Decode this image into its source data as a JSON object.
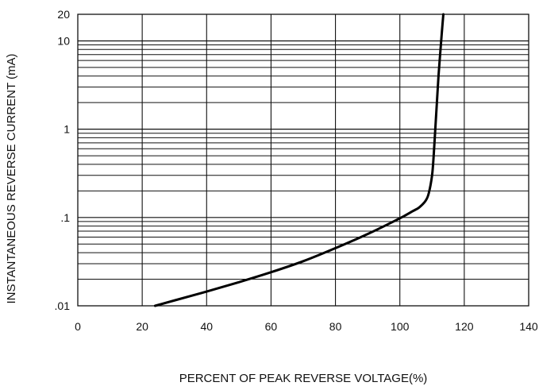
{
  "chart_data": {
    "type": "line",
    "title": "",
    "xlabel": "PERCENT OF PEAK REVERSE VOLTAGE(%)",
    "ylabel": "INSTANTANEOUS REVERSE CURRENT (mA)",
    "xlim": [
      0,
      140
    ],
    "ylim": [
      0.01,
      20
    ],
    "y_scale": "log",
    "grid": true,
    "legend": "none",
    "x_ticks": [
      0,
      20,
      40,
      60,
      80,
      100,
      120,
      140
    ],
    "y_ticks": [
      {
        "value": 0.01,
        "label": ".01"
      },
      {
        "value": 0.1,
        "label": ".1"
      },
      {
        "value": 1,
        "label": "1"
      },
      {
        "value": 10,
        "label": "10"
      },
      {
        "value": 20,
        "label": "20"
      }
    ],
    "series": [
      {
        "line_color": "#000000",
        "x": [
          24,
          30,
          40,
          50,
          60,
          70,
          80,
          90,
          100,
          104,
          106,
          108,
          109,
          110,
          110.5,
          111,
          111.5,
          112,
          112.5,
          113,
          113.5
        ],
        "y": [
          0.01,
          0.0115,
          0.0145,
          0.0185,
          0.024,
          0.032,
          0.045,
          0.065,
          0.098,
          0.118,
          0.13,
          0.155,
          0.19,
          0.3,
          0.5,
          1.0,
          2.0,
          4.0,
          7.0,
          12.0,
          20.0
        ]
      }
    ]
  }
}
